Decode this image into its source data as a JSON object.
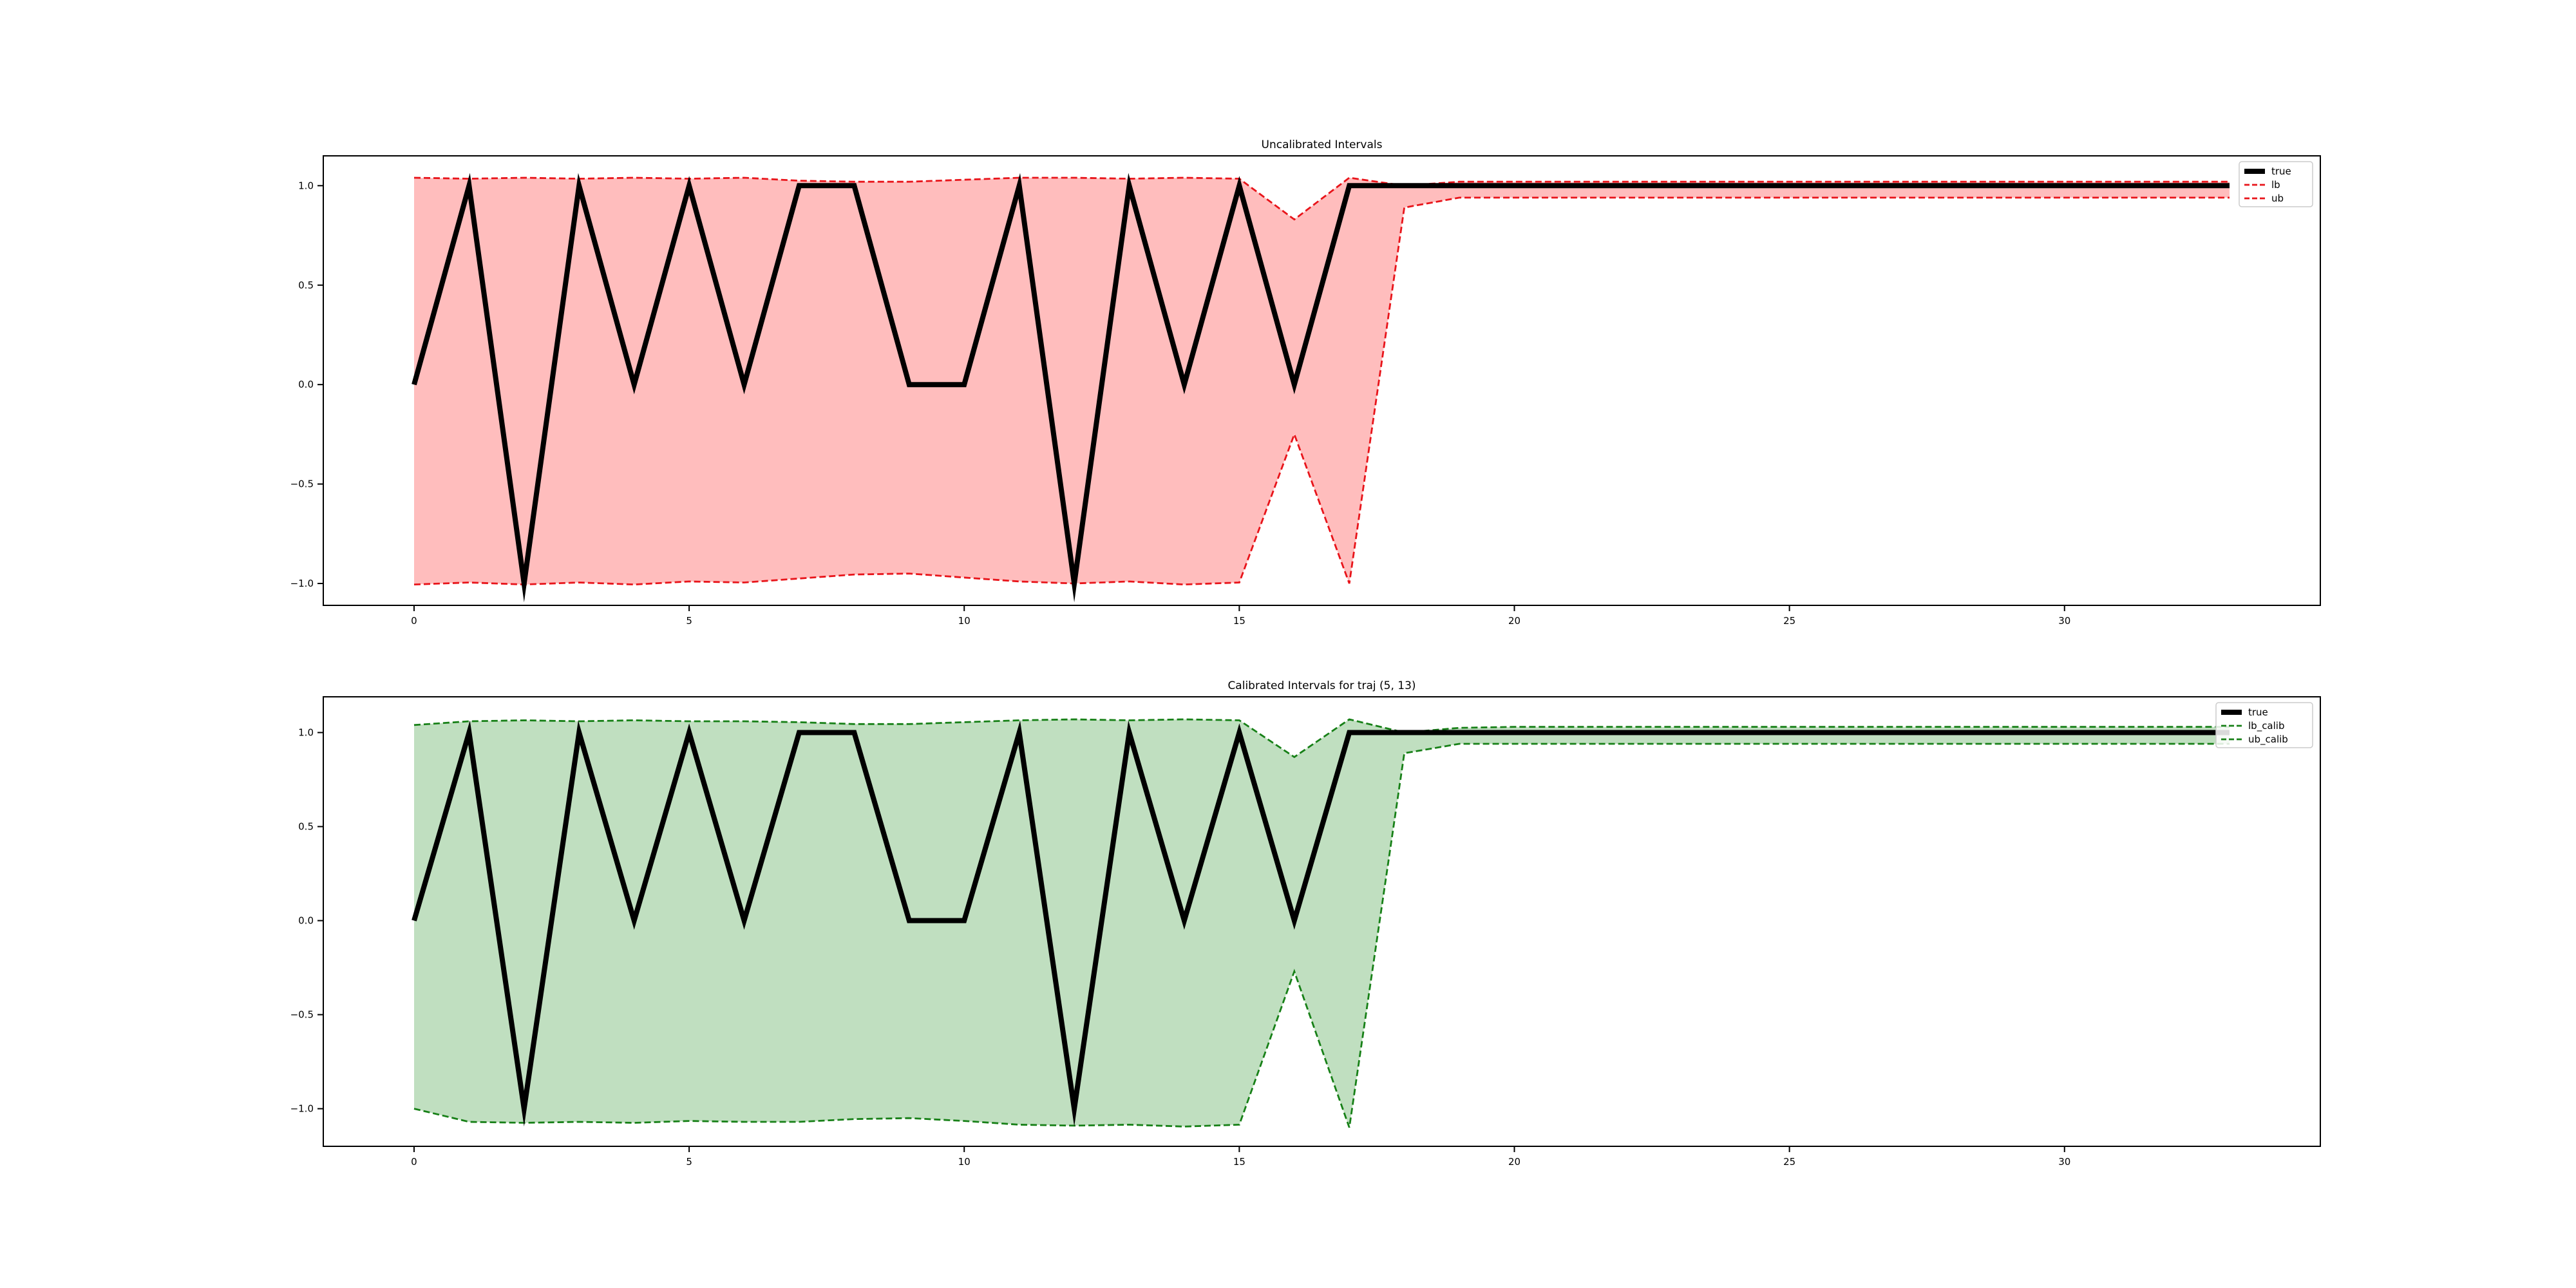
{
  "chart_data": [
    {
      "type": "line",
      "title": "Uncalibrated Intervals",
      "xlabel": "",
      "ylabel": "",
      "xlim": [
        -1.65,
        34.65
      ],
      "ylim": [
        -1.11,
        1.15
      ],
      "xticks": [
        0,
        5,
        10,
        15,
        20,
        25,
        30
      ],
      "yticks": [
        -1.0,
        -0.5,
        0.0,
        0.5,
        1.0
      ],
      "xtick_labels": [
        "0",
        "5",
        "10",
        "15",
        "20",
        "25",
        "30"
      ],
      "ytick_labels": [
        "−1.0",
        "−0.5",
        "0.0",
        "0.5",
        "1.0"
      ],
      "grid": false,
      "legend_position": "top-right",
      "fill_color": "#ffbdbd",
      "bound_color": "#e8141a",
      "x": [
        0,
        1,
        2,
        3,
        4,
        5,
        6,
        7,
        8,
        9,
        10,
        11,
        12,
        13,
        14,
        15,
        16,
        17,
        18,
        19,
        20,
        21,
        22,
        23,
        24,
        25,
        26,
        27,
        28,
        29,
        30,
        31,
        32,
        33
      ],
      "series": [
        {
          "name": "true",
          "style": "solid-black-thick",
          "values": [
            0,
            1,
            -1,
            1,
            0,
            1,
            0,
            1,
            1,
            0,
            0,
            1,
            -1,
            1,
            0,
            1,
            0,
            1,
            1,
            1,
            1,
            1,
            1,
            1,
            1,
            1,
            1,
            1,
            1,
            1,
            1,
            1,
            1,
            1
          ]
        },
        {
          "name": "lb",
          "style": "dashed-red",
          "values": [
            1.04,
            1.035,
            1.04,
            1.035,
            1.04,
            1.035,
            1.04,
            1.025,
            1.02,
            1.02,
            1.03,
            1.04,
            1.04,
            1.035,
            1.04,
            1.035,
            0.83,
            1.04,
            1.0,
            1.02,
            1.02,
            1.02,
            1.02,
            1.02,
            1.02,
            1.02,
            1.02,
            1.02,
            1.02,
            1.02,
            1.02,
            1.02,
            1.02,
            1.02
          ]
        },
        {
          "name": "ub",
          "style": "dashed-red",
          "values": [
            -1.005,
            -0.995,
            -1.005,
            -0.995,
            -1.005,
            -0.99,
            -0.995,
            -0.975,
            -0.955,
            -0.95,
            -0.97,
            -0.99,
            -1.0,
            -0.99,
            -1.005,
            -0.995,
            -0.25,
            -1.0,
            0.89,
            0.94,
            0.94,
            0.94,
            0.94,
            0.94,
            0.94,
            0.94,
            0.94,
            0.94,
            0.94,
            0.94,
            0.94,
            0.94,
            0.94,
            0.94
          ]
        }
      ]
    },
    {
      "type": "line",
      "title": "Calibrated Intervals for traj (5, 13)",
      "xlabel": "",
      "ylabel": "",
      "xlim": [
        -1.65,
        34.65
      ],
      "ylim": [
        -1.2,
        1.19
      ],
      "xticks": [
        0,
        5,
        10,
        15,
        20,
        25,
        30
      ],
      "yticks": [
        -1.0,
        -0.5,
        0.0,
        0.5,
        1.0
      ],
      "xtick_labels": [
        "0",
        "5",
        "10",
        "15",
        "20",
        "25",
        "30"
      ],
      "ytick_labels": [
        "−1.0",
        "−0.5",
        "0.0",
        "0.5",
        "1.0"
      ],
      "grid": false,
      "legend_position": "top-right",
      "fill_color": "#c0dfc0",
      "bound_color": "#178017",
      "x": [
        0,
        1,
        2,
        3,
        4,
        5,
        6,
        7,
        8,
        9,
        10,
        11,
        12,
        13,
        14,
        15,
        16,
        17,
        18,
        19,
        20,
        21,
        22,
        23,
        24,
        25,
        26,
        27,
        28,
        29,
        30,
        31,
        32,
        33
      ],
      "series": [
        {
          "name": "true",
          "style": "solid-black-thick",
          "values": [
            0,
            1,
            -1,
            1,
            0,
            1,
            0,
            1,
            1,
            0,
            0,
            1,
            -1,
            1,
            0,
            1,
            0,
            1,
            1,
            1,
            1,
            1,
            1,
            1,
            1,
            1,
            1,
            1,
            1,
            1,
            1,
            1,
            1,
            1
          ]
        },
        {
          "name": "lb_calib",
          "style": "dashed-green",
          "values": [
            1.04,
            1.06,
            1.065,
            1.06,
            1.065,
            1.06,
            1.06,
            1.055,
            1.045,
            1.045,
            1.055,
            1.065,
            1.07,
            1.065,
            1.07,
            1.065,
            0.87,
            1.07,
            1.0,
            1.025,
            1.03,
            1.03,
            1.03,
            1.03,
            1.03,
            1.03,
            1.03,
            1.03,
            1.03,
            1.03,
            1.03,
            1.03,
            1.03,
            1.03
          ]
        },
        {
          "name": "ub_calib",
          "style": "dashed-green",
          "values": [
            -1.0,
            -1.07,
            -1.075,
            -1.07,
            -1.075,
            -1.065,
            -1.07,
            -1.07,
            -1.055,
            -1.05,
            -1.065,
            -1.085,
            -1.09,
            -1.085,
            -1.095,
            -1.085,
            -0.27,
            -1.1,
            0.89,
            0.94,
            0.94,
            0.94,
            0.94,
            0.94,
            0.94,
            0.94,
            0.94,
            0.94,
            0.94,
            0.94,
            0.94,
            0.94,
            0.94,
            0.94
          ]
        }
      ]
    }
  ]
}
